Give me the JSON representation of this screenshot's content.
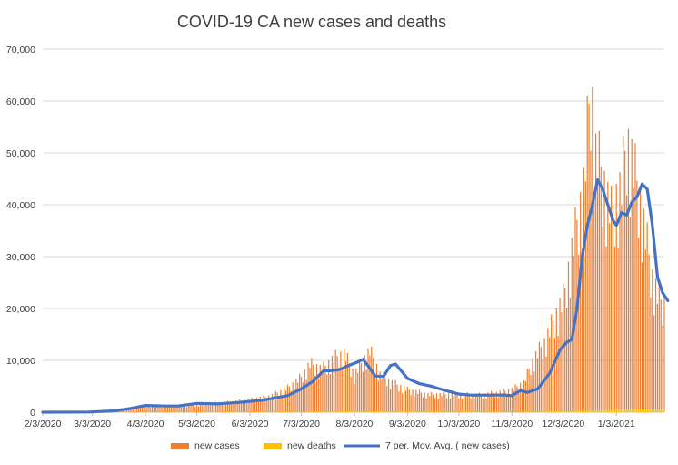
{
  "chart_data": {
    "type": "bar",
    "title": "COVID-19 CA new cases and deaths",
    "xlabel": "",
    "ylabel": "",
    "ylim": [
      0,
      70000
    ],
    "y_ticks": [
      "0",
      "10,000",
      "20,000",
      "30,000",
      "40,000",
      "50,000",
      "60,000",
      "70,000"
    ],
    "x_ticks": [
      "2/3/2020",
      "3/3/2020",
      "4/3/2020",
      "5/3/2020",
      "6/3/2020",
      "7/3/2020",
      "8/3/2020",
      "9/3/2020",
      "10/3/2020",
      "11/3/2020",
      "12/3/2020",
      "1/3/2021"
    ],
    "x_range": [
      "2020-02-03",
      "2021-01-31"
    ],
    "grid": true,
    "legend_position": "bottom",
    "series": [
      {
        "name": "new cases",
        "type": "bar",
        "color": "#ED7D31",
        "points": [
          [
            "2020-02-03",
            0
          ],
          [
            "2020-03-03",
            20
          ],
          [
            "2020-03-15",
            150
          ],
          [
            "2020-03-25",
            600
          ],
          [
            "2020-04-03",
            1200
          ],
          [
            "2020-04-15",
            1100
          ],
          [
            "2020-05-01",
            1300
          ],
          [
            "2020-05-03",
            1500
          ],
          [
            "2020-05-20",
            1800
          ],
          [
            "2020-06-03",
            2300
          ],
          [
            "2020-06-15",
            3000
          ],
          [
            "2020-06-25",
            4500
          ],
          [
            "2020-07-03",
            6500
          ],
          [
            "2020-07-08",
            9000
          ],
          [
            "2020-07-15",
            8000
          ],
          [
            "2020-07-22",
            10000
          ],
          [
            "2020-07-28",
            11000
          ],
          [
            "2020-08-03",
            7000
          ],
          [
            "2020-08-08",
            9500
          ],
          [
            "2020-08-12",
            11500
          ],
          [
            "2020-08-18",
            7000
          ],
          [
            "2020-08-25",
            5500
          ],
          [
            "2020-09-03",
            4200
          ],
          [
            "2020-09-15",
            3300
          ],
          [
            "2020-10-03",
            3300
          ],
          [
            "2020-10-15",
            3200
          ],
          [
            "2020-10-25",
            3600
          ],
          [
            "2020-11-03",
            4200
          ],
          [
            "2020-11-10",
            5500
          ],
          [
            "2020-11-15",
            9500
          ],
          [
            "2020-11-22",
            13000
          ],
          [
            "2020-11-28",
            17500
          ],
          [
            "2020-12-03",
            21000
          ],
          [
            "2020-12-08",
            30000
          ],
          [
            "2020-12-12",
            37000
          ],
          [
            "2020-12-15",
            42000
          ],
          [
            "2020-12-19",
            61500
          ],
          [
            "2020-12-22",
            48000
          ],
          [
            "2020-12-25",
            45000
          ],
          [
            "2020-12-28",
            41000
          ],
          [
            "2020-12-31",
            37000
          ],
          [
            "2021-01-03",
            40000
          ],
          [
            "2021-01-06",
            42000
          ],
          [
            "2021-01-09",
            51000
          ],
          [
            "2021-01-12",
            47000
          ],
          [
            "2021-01-16",
            41000
          ],
          [
            "2021-01-20",
            33000
          ],
          [
            "2021-01-24",
            25000
          ],
          [
            "2021-01-28",
            21000
          ],
          [
            "2021-01-31",
            20000
          ]
        ]
      },
      {
        "name": "new deaths",
        "type": "bar",
        "color": "#FFC000",
        "points": [
          [
            "2020-02-03",
            0
          ],
          [
            "2020-04-03",
            50
          ],
          [
            "2020-05-03",
            70
          ],
          [
            "2020-06-03",
            60
          ],
          [
            "2020-07-03",
            90
          ],
          [
            "2020-08-03",
            140
          ],
          [
            "2020-09-03",
            110
          ],
          [
            "2020-10-03",
            80
          ],
          [
            "2020-11-03",
            50
          ],
          [
            "2020-12-03",
            150
          ],
          [
            "2020-12-20",
            300
          ],
          [
            "2021-01-03",
            450
          ],
          [
            "2021-01-15",
            550
          ],
          [
            "2021-01-31",
            500
          ]
        ]
      },
      {
        "name": "7 per. Mov. Avg. ( new cases)",
        "type": "line",
        "color": "#4472C4",
        "points": [
          [
            "2020-02-03",
            0
          ],
          [
            "2020-03-01",
            40
          ],
          [
            "2020-03-15",
            250
          ],
          [
            "2020-03-25",
            700
          ],
          [
            "2020-04-03",
            1300
          ],
          [
            "2020-04-15",
            1200
          ],
          [
            "2020-04-22",
            1200
          ],
          [
            "2020-05-03",
            1700
          ],
          [
            "2020-05-15",
            1600
          ],
          [
            "2020-05-28",
            1900
          ],
          [
            "2020-06-10",
            2300
          ],
          [
            "2020-06-25",
            3200
          ],
          [
            "2020-07-03",
            4500
          ],
          [
            "2020-07-10",
            6000
          ],
          [
            "2020-07-16",
            8000
          ],
          [
            "2020-07-20",
            8000
          ],
          [
            "2020-07-25",
            8200
          ],
          [
            "2020-08-01",
            9200
          ],
          [
            "2020-08-05",
            9700
          ],
          [
            "2020-08-08",
            10200
          ],
          [
            "2020-08-12",
            8500
          ],
          [
            "2020-08-15",
            7000
          ],
          [
            "2020-08-20",
            6900
          ],
          [
            "2020-08-24",
            9000
          ],
          [
            "2020-08-27",
            9300
          ],
          [
            "2020-09-03",
            6500
          ],
          [
            "2020-09-10",
            5500
          ],
          [
            "2020-09-17",
            5000
          ],
          [
            "2020-09-25",
            4200
          ],
          [
            "2020-10-03",
            3500
          ],
          [
            "2020-10-10",
            3300
          ],
          [
            "2020-10-20",
            3300
          ],
          [
            "2020-10-30",
            3300
          ],
          [
            "2020-11-03",
            3200
          ],
          [
            "2020-11-08",
            4200
          ],
          [
            "2020-11-12",
            3800
          ],
          [
            "2020-11-18",
            4500
          ],
          [
            "2020-11-25",
            7500
          ],
          [
            "2020-12-01",
            12000
          ],
          [
            "2020-12-05",
            13500
          ],
          [
            "2020-12-08",
            14000
          ],
          [
            "2020-12-11",
            20000
          ],
          [
            "2020-12-14",
            30000
          ],
          [
            "2020-12-17",
            36000
          ],
          [
            "2020-12-20",
            40000
          ],
          [
            "2020-12-23",
            44800
          ],
          [
            "2020-12-26",
            43000
          ],
          [
            "2020-12-29",
            40000
          ],
          [
            "2021-01-01",
            37000
          ],
          [
            "2021-01-03",
            36000
          ],
          [
            "2021-01-06",
            38500
          ],
          [
            "2021-01-09",
            38000
          ],
          [
            "2021-01-12",
            40500
          ],
          [
            "2021-01-15",
            41500
          ],
          [
            "2021-01-18",
            44000
          ],
          [
            "2021-01-21",
            43000
          ],
          [
            "2021-01-24",
            36000
          ],
          [
            "2021-01-27",
            26000
          ],
          [
            "2021-01-30",
            23000
          ],
          [
            "2021-02-02",
            21500
          ]
        ]
      }
    ]
  }
}
